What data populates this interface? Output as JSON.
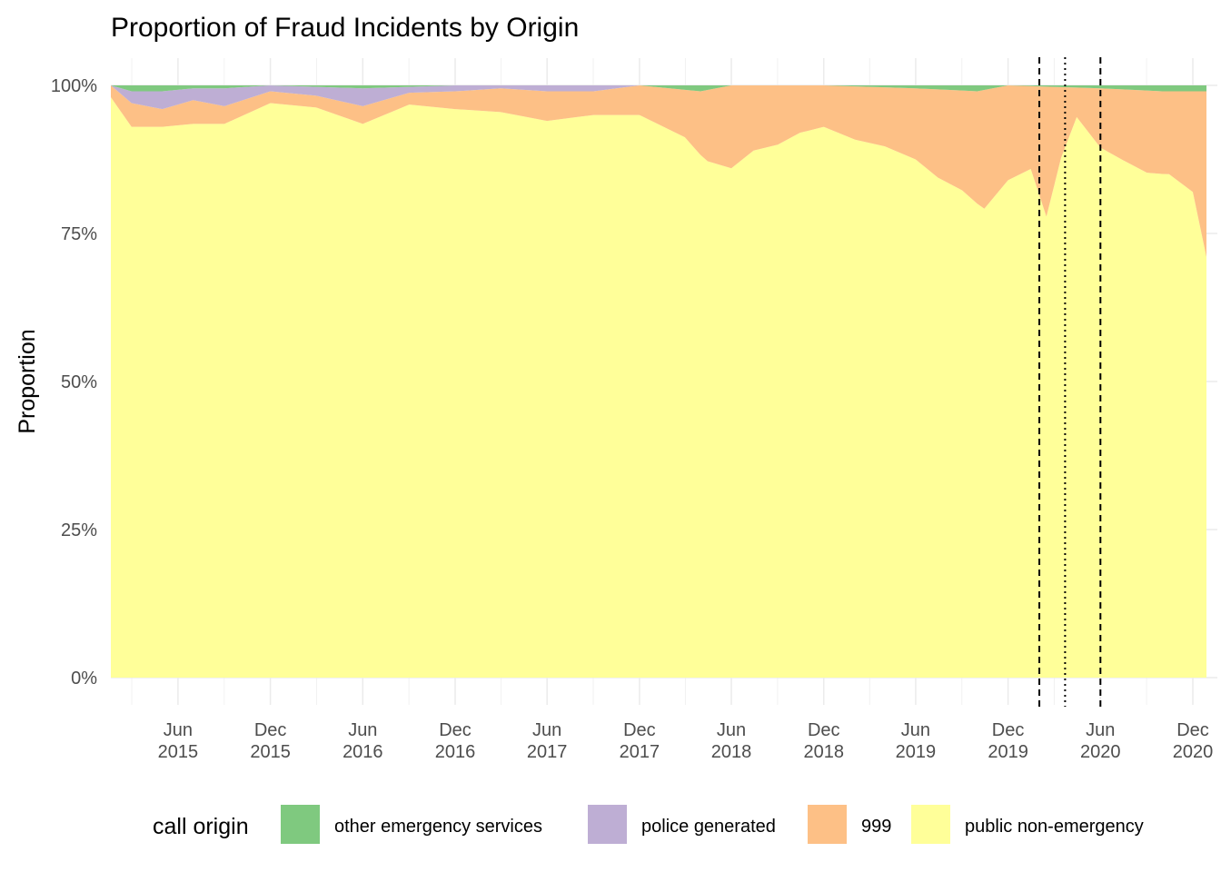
{
  "chart_data": {
    "type": "area",
    "stacked": "proportion",
    "title": "Proportion of Fraud Incidents by Origin",
    "xlabel": "",
    "ylabel": "Proportion",
    "x_range": [
      "2015-01-19",
      "2020-12-28"
    ],
    "ylim": [
      0,
      1
    ],
    "grid": true,
    "y_ticks": [
      {
        "value": 0,
        "label": "0%"
      },
      {
        "value": 0.25,
        "label": "25%"
      },
      {
        "value": 0.5,
        "label": "50%"
      },
      {
        "value": 0.75,
        "label": "75%"
      },
      {
        "value": 1,
        "label": "100%"
      }
    ],
    "x_ticks": [
      {
        "date": "2015-06-01",
        "month": "Jun",
        "year": "2015"
      },
      {
        "date": "2015-12-01",
        "month": "Dec",
        "year": "2015"
      },
      {
        "date": "2016-06-01",
        "month": "Jun",
        "year": "2016"
      },
      {
        "date": "2016-12-01",
        "month": "Dec",
        "year": "2016"
      },
      {
        "date": "2017-06-01",
        "month": "Jun",
        "year": "2017"
      },
      {
        "date": "2017-12-01",
        "month": "Dec",
        "year": "2017"
      },
      {
        "date": "2018-06-01",
        "month": "Jun",
        "year": "2018"
      },
      {
        "date": "2018-12-01",
        "month": "Dec",
        "year": "2018"
      },
      {
        "date": "2019-06-01",
        "month": "Jun",
        "year": "2019"
      },
      {
        "date": "2019-12-01",
        "month": "Dec",
        "year": "2019"
      },
      {
        "date": "2020-06-01",
        "month": "Jun",
        "year": "2020"
      },
      {
        "date": "2020-12-01",
        "month": "Dec",
        "year": "2020"
      }
    ],
    "reference_lines": [
      {
        "date": "2020-02-01",
        "style": "dashed"
      },
      {
        "date": "2020-03-23",
        "style": "dotted"
      },
      {
        "date": "2020-06-01",
        "style": "dashed"
      }
    ],
    "legend": {
      "title": "call origin",
      "position": "bottom",
      "entries": [
        {
          "name": "other emergency services",
          "color": "#7fc97f"
        },
        {
          "name": "police generated",
          "color": "#beaed4"
        },
        {
          "name": "999",
          "color": "#fdc086"
        },
        {
          "name": "public non-emergency",
          "color": "#ffff99"
        }
      ]
    },
    "series": [
      {
        "name": "other emergency services",
        "color": "#7fc97f",
        "points": [
          [
            "2015-01-19",
            0.0
          ],
          [
            "2015-03-01",
            0.01
          ],
          [
            "2015-05-01",
            0.01
          ],
          [
            "2015-07-01",
            0.005
          ],
          [
            "2015-09-01",
            0.005
          ],
          [
            "2015-12-01",
            0.0
          ],
          [
            "2016-06-01",
            0.005
          ],
          [
            "2016-12-01",
            0.0
          ],
          [
            "2017-06-01",
            0.0
          ],
          [
            "2017-12-01",
            0.0
          ],
          [
            "2018-04-01",
            0.01
          ],
          [
            "2018-06-01",
            0.0
          ],
          [
            "2018-12-01",
            0.0
          ],
          [
            "2019-06-01",
            0.005
          ],
          [
            "2019-10-01",
            0.01
          ],
          [
            "2019-12-01",
            0.0
          ],
          [
            "2020-06-01",
            0.005
          ],
          [
            "2020-10-01",
            0.01
          ],
          [
            "2020-12-28",
            0.01
          ]
        ]
      },
      {
        "name": "police generated",
        "color": "#beaed4",
        "points": [
          [
            "2015-01-19",
            0.0
          ],
          [
            "2015-03-01",
            0.02
          ],
          [
            "2015-05-01",
            0.03
          ],
          [
            "2015-07-01",
            0.02
          ],
          [
            "2015-09-01",
            0.03
          ],
          [
            "2015-12-01",
            0.01
          ],
          [
            "2016-03-01",
            0.015
          ],
          [
            "2016-06-01",
            0.03
          ],
          [
            "2016-09-01",
            0.01
          ],
          [
            "2016-12-01",
            0.01
          ],
          [
            "2017-03-01",
            0.005
          ],
          [
            "2017-06-01",
            0.01
          ],
          [
            "2017-09-01",
            0.01
          ],
          [
            "2017-12-01",
            0.0
          ],
          [
            "2018-06-01",
            0.0
          ],
          [
            "2018-12-01",
            0.0
          ],
          [
            "2019-06-01",
            0.0
          ],
          [
            "2019-12-01",
            0.0
          ],
          [
            "2020-06-01",
            0.0
          ],
          [
            "2020-12-28",
            0.0
          ]
        ]
      },
      {
        "name": "999",
        "color": "#fdc086",
        "points": [
          [
            "2015-01-19",
            0.02
          ],
          [
            "2015-03-01",
            0.04
          ],
          [
            "2015-05-01",
            0.03
          ],
          [
            "2015-07-01",
            0.04
          ],
          [
            "2015-09-01",
            0.03
          ],
          [
            "2015-12-01",
            0.02
          ],
          [
            "2016-03-01",
            0.02
          ],
          [
            "2016-06-01",
            0.03
          ],
          [
            "2016-09-01",
            0.02
          ],
          [
            "2016-12-01",
            0.03
          ],
          [
            "2017-03-01",
            0.04
          ],
          [
            "2017-06-01",
            0.05
          ],
          [
            "2017-09-01",
            0.04
          ],
          [
            "2017-12-01",
            0.05
          ],
          [
            "2018-03-01",
            0.08
          ],
          [
            "2018-04-15",
            0.12
          ],
          [
            "2018-06-01",
            0.14
          ],
          [
            "2018-07-15",
            0.11
          ],
          [
            "2018-09-01",
            0.1
          ],
          [
            "2018-10-15",
            0.08
          ],
          [
            "2018-12-01",
            0.07
          ],
          [
            "2019-02-01",
            0.09
          ],
          [
            "2019-04-01",
            0.1
          ],
          [
            "2019-06-01",
            0.12
          ],
          [
            "2019-07-15",
            0.15
          ],
          [
            "2019-09-01",
            0.17
          ],
          [
            "2019-10-15",
            0.2
          ],
          [
            "2019-12-01",
            0.16
          ],
          [
            "2020-01-15",
            0.14
          ],
          [
            "2020-02-15",
            0.22
          ],
          [
            "2020-03-15",
            0.12
          ],
          [
            "2020-04-15",
            0.05
          ],
          [
            "2020-06-01",
            0.1
          ],
          [
            "2020-07-15",
            0.12
          ],
          [
            "2020-09-01",
            0.14
          ],
          [
            "2020-10-15",
            0.14
          ],
          [
            "2020-12-01",
            0.17
          ],
          [
            "2020-12-28",
            0.28
          ]
        ]
      },
      {
        "name": "public non-emergency",
        "color": "#ffff99",
        "points": [
          [
            "2015-01-19",
            0.98
          ],
          [
            "2015-03-01",
            0.93
          ],
          [
            "2015-05-01",
            0.93
          ],
          [
            "2015-07-01",
            0.935
          ],
          [
            "2015-09-01",
            0.935
          ],
          [
            "2015-12-01",
            0.97
          ],
          [
            "2016-03-01",
            0.965
          ],
          [
            "2016-06-01",
            0.935
          ],
          [
            "2016-09-01",
            0.97
          ],
          [
            "2016-12-01",
            0.96
          ],
          [
            "2017-03-01",
            0.955
          ],
          [
            "2017-06-01",
            0.94
          ],
          [
            "2017-09-01",
            0.95
          ],
          [
            "2017-12-01",
            0.95
          ],
          [
            "2018-03-01",
            0.91
          ],
          [
            "2018-04-15",
            0.87
          ],
          [
            "2018-06-01",
            0.86
          ],
          [
            "2018-07-15",
            0.89
          ],
          [
            "2018-09-01",
            0.9
          ],
          [
            "2018-10-15",
            0.92
          ],
          [
            "2018-12-01",
            0.93
          ],
          [
            "2019-02-01",
            0.91
          ],
          [
            "2019-04-01",
            0.9
          ],
          [
            "2019-06-01",
            0.875
          ],
          [
            "2019-07-15",
            0.85
          ],
          [
            "2019-09-01",
            0.83
          ],
          [
            "2019-10-15",
            0.79
          ],
          [
            "2019-12-01",
            0.84
          ],
          [
            "2020-01-15",
            0.86
          ],
          [
            "2020-02-15",
            0.78
          ],
          [
            "2020-03-15",
            0.88
          ],
          [
            "2020-04-15",
            0.95
          ],
          [
            "2020-06-01",
            0.895
          ],
          [
            "2020-07-15",
            0.88
          ],
          [
            "2020-09-01",
            0.86
          ],
          [
            "2020-10-15",
            0.85
          ],
          [
            "2020-12-01",
            0.82
          ],
          [
            "2020-12-28",
            0.71
          ]
        ]
      }
    ]
  }
}
